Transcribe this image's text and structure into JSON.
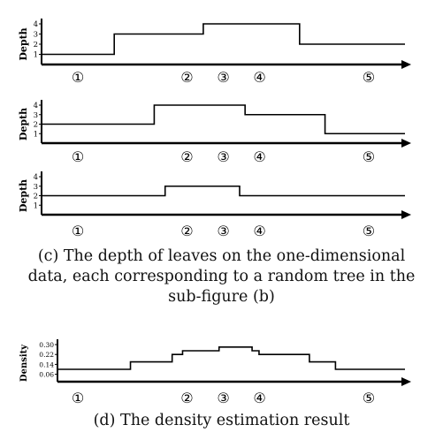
{
  "diagram": {
    "plots": [
      {
        "ylabel": "Depth",
        "ticks": [
          "1",
          "2",
          "3",
          "4"
        ],
        "tick_values": [
          1,
          2,
          3,
          4
        ],
        "ymax": 4,
        "steps": [
          [
            0,
            1
          ],
          [
            0.2,
            3
          ],
          [
            0.445,
            4
          ],
          [
            0.71,
            2
          ],
          [
            1.0,
            2
          ]
        ],
        "markers": [
          "①",
          "②",
          "③",
          "④",
          "⑤"
        ],
        "marker_positions": [
          0.1,
          0.4,
          0.5,
          0.6,
          0.9
        ]
      },
      {
        "ylabel": "Depth",
        "ticks": [
          "1",
          "2",
          "3",
          "4"
        ],
        "tick_values": [
          1,
          2,
          3,
          4
        ],
        "ymax": 4,
        "steps": [
          [
            0,
            2
          ],
          [
            0.31,
            4
          ],
          [
            0.56,
            3
          ],
          [
            0.78,
            1
          ],
          [
            1.0,
            1
          ]
        ],
        "markers": [
          "①",
          "②",
          "③",
          "④",
          "⑤"
        ],
        "marker_positions": [
          0.1,
          0.4,
          0.5,
          0.6,
          0.9
        ]
      },
      {
        "ylabel": "Depth",
        "ticks": [
          "1",
          "2",
          "3",
          "4"
        ],
        "tick_values": [
          1,
          2,
          3,
          4
        ],
        "ymax": 4,
        "steps": [
          [
            0,
            2
          ],
          [
            0.34,
            3
          ],
          [
            0.545,
            2
          ],
          [
            1.0,
            2
          ]
        ],
        "markers": [
          "①",
          "②",
          "③",
          "④",
          "⑤"
        ],
        "marker_positions": [
          0.1,
          0.4,
          0.5,
          0.6,
          0.9
        ]
      },
      {
        "ylabel": "Density",
        "ticks": [
          "0.06",
          "0.14",
          "0.22",
          "0.30"
        ],
        "tick_values": [
          0.06,
          0.14,
          0.22,
          0.3
        ],
        "ymax": 0.3,
        "steps": [
          [
            0,
            0.1
          ],
          [
            0.21,
            0.16
          ],
          [
            0.33,
            0.22
          ],
          [
            0.36,
            0.25
          ],
          [
            0.465,
            0.28
          ],
          [
            0.56,
            0.25
          ],
          [
            0.58,
            0.22
          ],
          [
            0.725,
            0.16
          ],
          [
            0.8,
            0.1
          ],
          [
            1.0,
            0.1
          ]
        ],
        "markers": [
          "①",
          "②",
          "③",
          "④",
          "⑤"
        ],
        "marker_positions": [
          0.1,
          0.4,
          0.5,
          0.6,
          0.9
        ]
      }
    ],
    "caption_c": [
      "(c) The depth of leaves on the one-dimensional",
      "data, each corresponding to a random tree in the",
      "sub-figure (b)"
    ],
    "caption_d": "(d) The density estimation result"
  }
}
